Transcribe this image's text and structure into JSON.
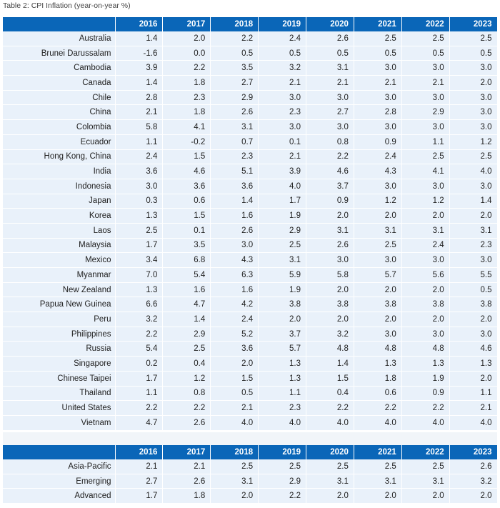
{
  "caption": "Table 2: CPI Inflation (year-on-year %)",
  "years": [
    "2016",
    "2017",
    "2018",
    "2019",
    "2020",
    "2021",
    "2022",
    "2023"
  ],
  "colors": {
    "header_bg": "#0a66b8",
    "row_bg": "#e9f1fa"
  },
  "countries": [
    {
      "name": "Australia",
      "values": [
        "1.4",
        "2.0",
        "2.2",
        "2.4",
        "2.6",
        "2.5",
        "2.5",
        "2.5"
      ]
    },
    {
      "name": "Brunei Darussalam",
      "values": [
        "-1.6",
        "0.0",
        "0.5",
        "0.5",
        "0.5",
        "0.5",
        "0.5",
        "0.5"
      ]
    },
    {
      "name": "Cambodia",
      "values": [
        "3.9",
        "2.2",
        "3.5",
        "3.2",
        "3.1",
        "3.0",
        "3.0",
        "3.0"
      ]
    },
    {
      "name": "Canada",
      "values": [
        "1.4",
        "1.8",
        "2.7",
        "2.1",
        "2.1",
        "2.1",
        "2.1",
        "2.0"
      ]
    },
    {
      "name": "Chile",
      "values": [
        "2.8",
        "2.3",
        "2.9",
        "3.0",
        "3.0",
        "3.0",
        "3.0",
        "3.0"
      ]
    },
    {
      "name": "China",
      "values": [
        "2.1",
        "1.8",
        "2.6",
        "2.3",
        "2.7",
        "2.8",
        "2.9",
        "3.0"
      ]
    },
    {
      "name": "Colombia",
      "values": [
        "5.8",
        "4.1",
        "3.1",
        "3.0",
        "3.0",
        "3.0",
        "3.0",
        "3.0"
      ]
    },
    {
      "name": "Ecuador",
      "values": [
        "1.1",
        "-0.2",
        "0.7",
        "0.1",
        "0.8",
        "0.9",
        "1.1",
        "1.2"
      ]
    },
    {
      "name": "Hong Kong, China",
      "values": [
        "2.4",
        "1.5",
        "2.3",
        "2.1",
        "2.2",
        "2.4",
        "2.5",
        "2.5"
      ]
    },
    {
      "name": "India",
      "values": [
        "3.6",
        "4.6",
        "5.1",
        "3.9",
        "4.6",
        "4.3",
        "4.1",
        "4.0"
      ]
    },
    {
      "name": "Indonesia",
      "values": [
        "3.0",
        "3.6",
        "3.6",
        "4.0",
        "3.7",
        "3.0",
        "3.0",
        "3.0"
      ]
    },
    {
      "name": "Japan",
      "values": [
        "0.3",
        "0.6",
        "1.4",
        "1.7",
        "0.9",
        "1.2",
        "1.2",
        "1.4"
      ]
    },
    {
      "name": "Korea",
      "values": [
        "1.3",
        "1.5",
        "1.6",
        "1.9",
        "2.0",
        "2.0",
        "2.0",
        "2.0"
      ]
    },
    {
      "name": "Laos",
      "values": [
        "2.5",
        "0.1",
        "2.6",
        "2.9",
        "3.1",
        "3.1",
        "3.1",
        "3.1"
      ]
    },
    {
      "name": "Malaysia",
      "values": [
        "1.7",
        "3.5",
        "3.0",
        "2.5",
        "2.6",
        "2.5",
        "2.4",
        "2.3"
      ]
    },
    {
      "name": "Mexico",
      "values": [
        "3.4",
        "6.8",
        "4.3",
        "3.1",
        "3.0",
        "3.0",
        "3.0",
        "3.0"
      ]
    },
    {
      "name": "Myanmar",
      "values": [
        "7.0",
        "5.4",
        "6.3",
        "5.9",
        "5.8",
        "5.7",
        "5.6",
        "5.5"
      ]
    },
    {
      "name": "New Zealand",
      "values": [
        "1.3",
        "1.6",
        "1.6",
        "1.9",
        "2.0",
        "2.0",
        "2.0",
        "0.5"
      ]
    },
    {
      "name": "Papua New Guinea",
      "values": [
        "6.6",
        "4.7",
        "4.2",
        "3.8",
        "3.8",
        "3.8",
        "3.8",
        "3.8"
      ]
    },
    {
      "name": "Peru",
      "values": [
        "3.2",
        "1.4",
        "2.4",
        "2.0",
        "2.0",
        "2.0",
        "2.0",
        "2.0"
      ]
    },
    {
      "name": "Philippines",
      "values": [
        "2.2",
        "2.9",
        "5.2",
        "3.7",
        "3.2",
        "3.0",
        "3.0",
        "3.0"
      ]
    },
    {
      "name": "Russia",
      "values": [
        "5.4",
        "2.5",
        "3.6",
        "5.7",
        "4.8",
        "4.8",
        "4.8",
        "4.6"
      ]
    },
    {
      "name": "Singapore",
      "values": [
        "0.2",
        "0.4",
        "2.0",
        "1.3",
        "1.4",
        "1.3",
        "1.3",
        "1.3"
      ]
    },
    {
      "name": "Chinese Taipei",
      "values": [
        "1.7",
        "1.2",
        "1.5",
        "1.3",
        "1.5",
        "1.8",
        "1.9",
        "2.0"
      ]
    },
    {
      "name": "Thailand",
      "values": [
        "1.1",
        "0.8",
        "0.5",
        "1.1",
        "0.4",
        "0.6",
        "0.9",
        "1.1"
      ]
    },
    {
      "name": "United States",
      "values": [
        "2.2",
        "2.2",
        "2.1",
        "2.3",
        "2.2",
        "2.2",
        "2.2",
        "2.1"
      ]
    },
    {
      "name": "Vietnam",
      "values": [
        "4.7",
        "2.6",
        "4.0",
        "4.0",
        "4.0",
        "4.0",
        "4.0",
        "4.0"
      ]
    }
  ],
  "regions": [
    {
      "name": "Asia-Pacific",
      "values": [
        "2.1",
        "2.1",
        "2.5",
        "2.5",
        "2.5",
        "2.5",
        "2.5",
        "2.6"
      ]
    },
    {
      "name": "Emerging",
      "values": [
        "2.7",
        "2.6",
        "3.1",
        "2.9",
        "3.1",
        "3.1",
        "3.1",
        "3.2"
      ]
    },
    {
      "name": "Advanced",
      "values": [
        "1.7",
        "1.8",
        "2.0",
        "2.2",
        "2.0",
        "2.0",
        "2.0",
        "2.0"
      ]
    }
  ]
}
